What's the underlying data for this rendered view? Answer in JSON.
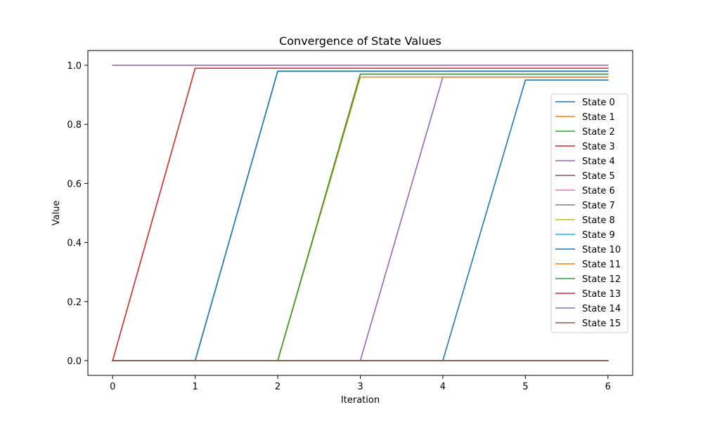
{
  "chart_data": {
    "type": "line",
    "title": "Convergence of State Values",
    "xlabel": "Iteration",
    "ylabel": "Value",
    "x": [
      0,
      1,
      2,
      3,
      4,
      5,
      6
    ],
    "xlim": [
      -0.3,
      6.3
    ],
    "ylim": [
      -0.05,
      1.05
    ],
    "xticks": [
      "0",
      "1",
      "2",
      "3",
      "4",
      "5",
      "6"
    ],
    "yticks": [
      "0.0",
      "0.2",
      "0.4",
      "0.6",
      "0.8",
      "1.0"
    ],
    "grid": false,
    "legend_position": "center-right",
    "series": [
      {
        "name": "State 0",
        "color": "#1f77b4",
        "values": [
          0,
          0,
          0,
          0,
          0,
          0.95,
          0.95
        ]
      },
      {
        "name": "State 1",
        "color": "#ff7f0e",
        "values": [
          0,
          0,
          0,
          0,
          0,
          0,
          0
        ]
      },
      {
        "name": "State 2",
        "color": "#2ca02c",
        "values": [
          0,
          0,
          0,
          0,
          0,
          0,
          0
        ]
      },
      {
        "name": "State 3",
        "color": "#d62728",
        "values": [
          0,
          0,
          0,
          0,
          0,
          0,
          0
        ]
      },
      {
        "name": "State 4",
        "color": "#9467bd",
        "values": [
          0,
          0,
          0,
          0,
          0.96,
          0.96,
          0.96
        ]
      },
      {
        "name": "State 5",
        "color": "#8c564b",
        "values": [
          0,
          0,
          0,
          0,
          0,
          0,
          0
        ]
      },
      {
        "name": "State 6",
        "color": "#e377c2",
        "values": [
          0,
          0,
          0,
          0,
          0,
          0,
          0
        ]
      },
      {
        "name": "State 7",
        "color": "#7f7f7f",
        "values": [
          0,
          0,
          0,
          0,
          0,
          0,
          0
        ]
      },
      {
        "name": "State 8",
        "color": "#bcbd22",
        "values": [
          0,
          0,
          0,
          0.97,
          0.97,
          0.97,
          0.97
        ]
      },
      {
        "name": "State 9",
        "color": "#17becf",
        "values": [
          0,
          0,
          0.98,
          0.98,
          0.98,
          0.98,
          0.98
        ]
      },
      {
        "name": "State 10",
        "color": "#1f77b4",
        "values": [
          0,
          0,
          0.98,
          0.98,
          0.98,
          0.98,
          0.98
        ]
      },
      {
        "name": "State 11",
        "color": "#ff7f0e",
        "values": [
          0,
          0,
          0,
          0.96,
          0.96,
          0.96,
          0.96
        ]
      },
      {
        "name": "State 12",
        "color": "#2ca02c",
        "values": [
          0,
          0,
          0,
          0.97,
          0.97,
          0.97,
          0.97
        ]
      },
      {
        "name": "State 13",
        "color": "#d62728",
        "values": [
          0,
          0.99,
          0.99,
          0.99,
          0.99,
          0.99,
          0.99
        ]
      },
      {
        "name": "State 14",
        "color": "#9467bd",
        "values": [
          1.0,
          1.0,
          1.0,
          1.0,
          1.0,
          1.0,
          1.0
        ]
      },
      {
        "name": "State 15",
        "color": "#8c564b",
        "values": [
          0,
          0,
          0,
          0,
          0,
          0,
          0
        ]
      }
    ]
  }
}
